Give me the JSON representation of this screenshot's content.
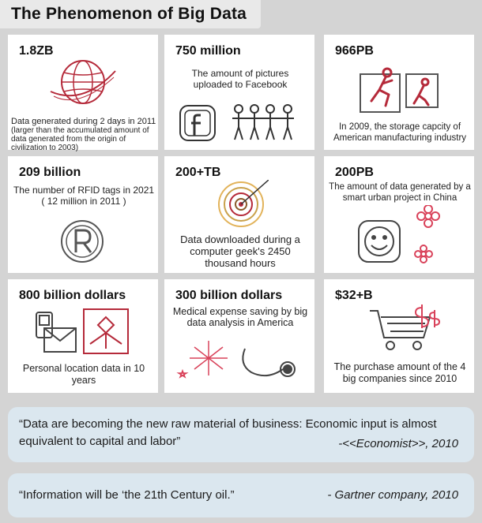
{
  "title": "The Phenomenon of Big Data",
  "cards": [
    {
      "value": "1.8ZB",
      "text": "Data generated during 2 days in 2011",
      "sub": "(larger than the accumulated amount of data generated from the origin of civilization to 2003)"
    },
    {
      "value": "750 million",
      "text": "The amount of pictures uploaded to Facebook"
    },
    {
      "value": "966PB",
      "text": "In 2009, the storage capcity of American manufacturing industry"
    },
    {
      "value": "209 billion",
      "text": "The number of RFID tags in 2021",
      "sub": "( 12 million in 2011 )"
    },
    {
      "value": "200+TB",
      "text": "Data downloaded during a computer geek's 2450 thousand hours"
    },
    {
      "value": "200PB",
      "text": "The amount of data generated by a smart urban project in China"
    },
    {
      "value": "800 billion dollars",
      "text": "Personal location data in 10 years"
    },
    {
      "value": "300 billion dollars",
      "text": "Medical expense saving by big data analysis in America"
    },
    {
      "value": "$32+B",
      "text": "The purchase amount of the 4 big companies since 2010"
    }
  ],
  "quotes": [
    {
      "text": "“Data are becoming the new raw material of business: Economic input is almost equivalent to capital and labor”",
      "source": "-<<Economist>>, 2010"
    },
    {
      "text": "“Information will be ‘the 21th Century oil.”",
      "source": "- Gartner company, 2010"
    }
  ],
  "icons": [
    "globe-icon",
    "facebook-icon",
    "people-icon",
    "runner-icon",
    "rfid-icon",
    "target-icon",
    "smiley-icon",
    "flower-icon",
    "phone-icon",
    "envelope-icon",
    "map-icon",
    "fireworks-icon",
    "stethoscope-icon",
    "cart-icon",
    "dollar-icon"
  ],
  "colors": {
    "accent_red": "#b52a3a",
    "quote_bg": "#dbe7ef",
    "page_bg": "#d4d4d4"
  }
}
